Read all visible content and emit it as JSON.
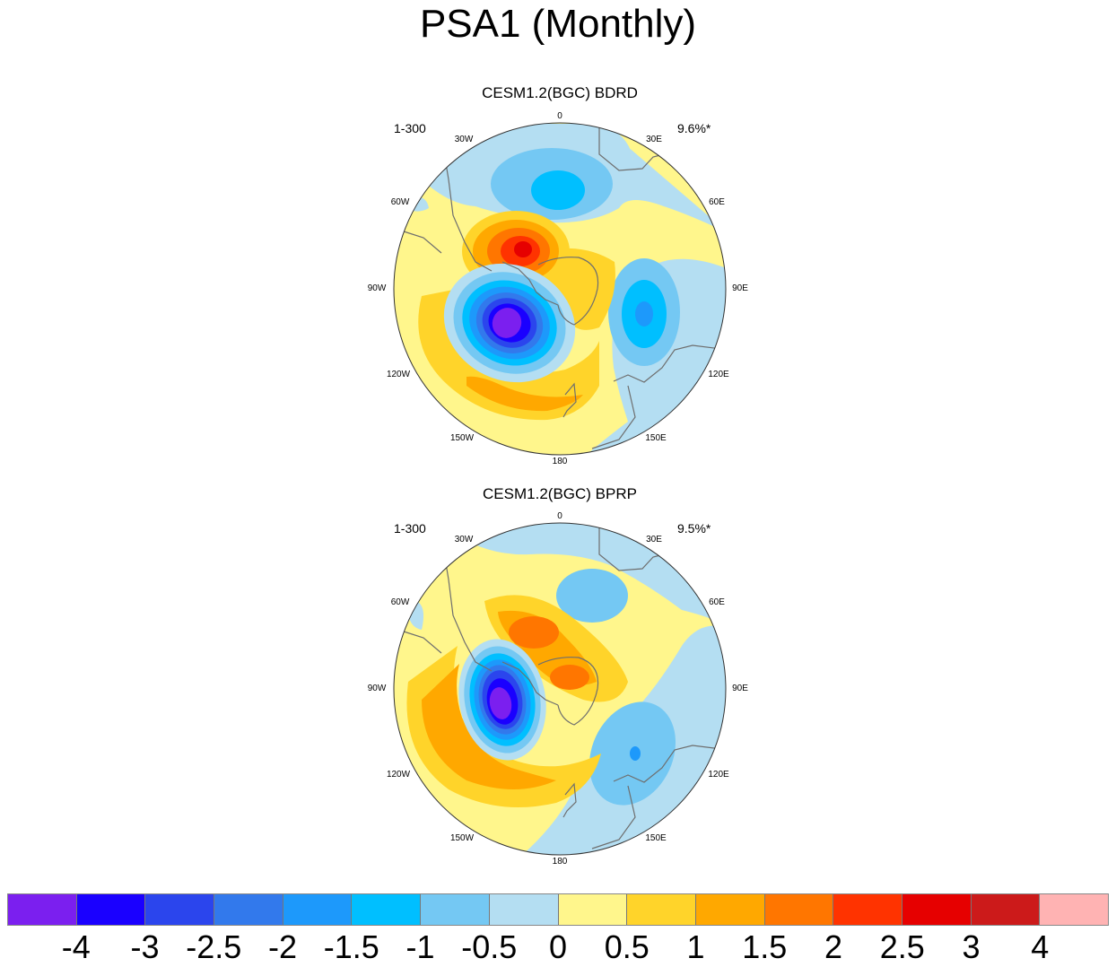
{
  "figure": {
    "title": "PSA1 (Monthly)"
  },
  "panels": [
    {
      "title": "CESM1.2(BGC) BDRD",
      "years": "1-300",
      "variance": "9.6%*"
    },
    {
      "title": "CESM1.2(BGC) BPRP",
      "years": "1-300",
      "variance": "9.5%*"
    }
  ],
  "longitude_labels": [
    "0",
    "30E",
    "60E",
    "90E",
    "120E",
    "150E",
    "180",
    "150W",
    "120W",
    "90W",
    "60W",
    "30W"
  ],
  "legend": {
    "colors": [
      "#7b1fef",
      "#1a00ff",
      "#2b45ed",
      "#3279ec",
      "#1d99fb",
      "#00bfff",
      "#74c8f3",
      "#b4def2",
      "#fff68c",
      "#ffd42a",
      "#ffa800",
      "#ff7600",
      "#ff3300",
      "#e60000",
      "#cc1a1a",
      "#ffb3b3"
    ],
    "labels": [
      "-4",
      "-3",
      "-2.5",
      "-2",
      "-1.5",
      "-1",
      "-0.5",
      "0",
      "0.5",
      "1",
      "1.5",
      "2",
      "2.5",
      "3",
      "4"
    ]
  },
  "map_colors": {
    "land_outline": "#6e6e6e",
    "neutral_yellow": "#fff68c",
    "neutral_blue": "#b4def2"
  }
}
